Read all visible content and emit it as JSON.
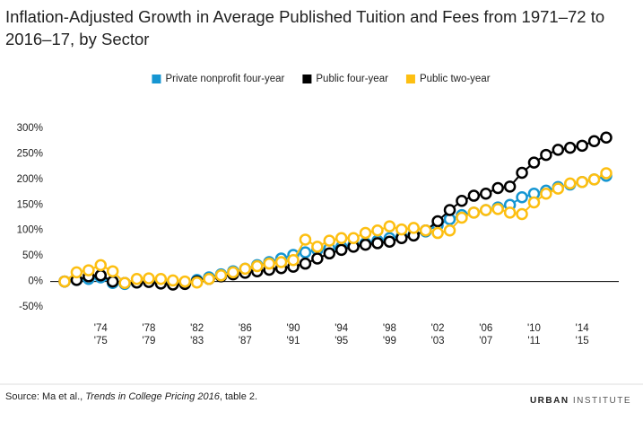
{
  "chart_data": {
    "type": "line",
    "title": "Inflation-Adjusted Growth in Average Published Tuition and Fees from 1971–72 to 2016–17, by Sector",
    "categories": [
      null,
      null,
      null,
      [
        "'74",
        "'75"
      ],
      null,
      null,
      null,
      [
        "'78",
        "'79"
      ],
      null,
      null,
      null,
      [
        "'82",
        "'83"
      ],
      null,
      null,
      null,
      [
        "'86",
        "'87"
      ],
      null,
      null,
      null,
      [
        "'90",
        "'91"
      ],
      null,
      null,
      null,
      [
        "'94",
        "'95"
      ],
      null,
      null,
      null,
      [
        "'98",
        "'99"
      ],
      null,
      null,
      null,
      [
        "'02",
        "'03"
      ],
      null,
      null,
      null,
      [
        "'06",
        "'07"
      ],
      null,
      null,
      null,
      [
        "'10",
        "'11"
      ],
      null,
      null,
      null,
      [
        "'14",
        "'15"
      ],
      null,
      null
    ],
    "series": [
      {
        "name": "Private nonprofit four-year",
        "color": "#1696d2",
        "values": [
          0,
          3,
          5,
          8,
          -3,
          -5,
          -2,
          0,
          2,
          0,
          -2,
          3,
          8,
          14,
          20,
          25,
          32,
          38,
          45,
          52,
          57,
          62,
          65,
          68,
          72,
          75,
          80,
          85,
          88,
          92,
          98,
          110,
          122,
          130,
          135,
          140,
          145,
          150,
          165,
          172,
          178,
          185,
          190,
          195,
          200,
          207
        ]
      },
      {
        "name": "Public four-year",
        "color": "#000000",
        "values": [
          0,
          3,
          10,
          12,
          0,
          -3,
          -2,
          -1,
          -4,
          -6,
          -5,
          0,
          5,
          10,
          14,
          17,
          20,
          23,
          26,
          29,
          35,
          45,
          55,
          62,
          68,
          72,
          75,
          78,
          85,
          90,
          100,
          118,
          140,
          158,
          168,
          172,
          183,
          186,
          213,
          233,
          248,
          258,
          262,
          266,
          275,
          282
        ]
      },
      {
        "name": "Public two-year",
        "color": "#fdbf11",
        "values": [
          0,
          18,
          22,
          32,
          20,
          -3,
          5,
          6,
          5,
          2,
          0,
          -2,
          5,
          12,
          18,
          25,
          30,
          35,
          38,
          42,
          82,
          68,
          80,
          85,
          85,
          95,
          100,
          108,
          102,
          105,
          100,
          95,
          100,
          125,
          135,
          140,
          142,
          135,
          132,
          155,
          172,
          182,
          192,
          195,
          200,
          212
        ]
      }
    ],
    "ylim": [
      -50,
      300
    ],
    "yticks": [
      {
        "value": -50,
        "label": "-50%"
      },
      {
        "value": 0,
        "label": "0%"
      },
      {
        "value": 50,
        "label": "50%"
      },
      {
        "value": 100,
        "label": "100%"
      },
      {
        "value": 150,
        "label": "150%"
      },
      {
        "value": 200,
        "label": "200%"
      },
      {
        "value": 250,
        "label": "250%"
      },
      {
        "value": 300,
        "label": "300%"
      }
    ],
    "grid": false,
    "legend": "top",
    "source_prefix": "Source: Ma et al., ",
    "source_title": "Trends in College Pricing 2016",
    "source_suffix": ", table 2.",
    "brand_bold": "URBAN",
    "brand_light": "INSTITUTE"
  }
}
